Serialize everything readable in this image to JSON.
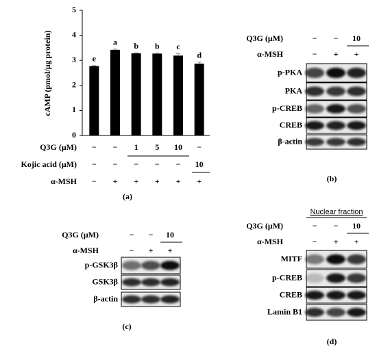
{
  "chart_data": {
    "type": "bar",
    "ylabel": "cAMP (pmol/μg protein)",
    "categories": [
      null,
      null,
      null,
      null,
      null,
      null
    ],
    "values": [
      2.77,
      3.42,
      3.28,
      3.27,
      3.19,
      2.87
    ],
    "errors": [
      0.02,
      0.03,
      0.02,
      0.02,
      0.08,
      0.06
    ],
    "annotations": [
      "e",
      "a",
      "b",
      "b",
      "c",
      "d"
    ],
    "color": "#000000",
    "ylim": [
      0,
      5
    ],
    "yticks": [
      0,
      1,
      2,
      3,
      4,
      5
    ]
  },
  "panel_a": {
    "treatments": [
      {
        "label": "Q3G (μM)",
        "values": [
          "−",
          "−",
          "1",
          "5",
          "10",
          "−"
        ]
      },
      {
        "label": "Kojic acid (μM)",
        "values": [
          "−",
          "−",
          "−",
          "−",
          "−",
          "10"
        ]
      },
      {
        "label": "α-MSH",
        "values": [
          "−",
          "+",
          "+",
          "+",
          "+",
          "+"
        ]
      }
    ],
    "caption": "(a)"
  },
  "panel_b": {
    "header": [
      {
        "label": "Q3G (μM)",
        "values": [
          "−",
          "−",
          "10"
        ]
      },
      {
        "label": "α-MSH",
        "values": [
          "−",
          "+",
          "+"
        ]
      }
    ],
    "rows": [
      "p-PKA",
      "PKA",
      "p-CREB",
      "CREB",
      "β-actin"
    ],
    "caption": "(b)"
  },
  "panel_c": {
    "header": [
      {
        "label": "Q3G (μM)",
        "values": [
          "−",
          "−",
          "10"
        ]
      },
      {
        "label": "α-MSH",
        "values": [
          "−",
          "+",
          "+"
        ]
      }
    ],
    "rows": [
      "p-GSK3β",
      "GSK3β",
      "β-actin"
    ],
    "caption": "(c)"
  },
  "panel_d": {
    "title": "Nuclear fraction",
    "header": [
      {
        "label": "Q3G (μM)",
        "values": [
          "−",
          "−",
          "10"
        ]
      },
      {
        "label": "α-MSH",
        "values": [
          "−",
          "+",
          "+"
        ]
      }
    ],
    "rows": [
      "MITF",
      "p-CREB",
      "CREB",
      "Lamin B1"
    ],
    "caption": "(d)"
  }
}
